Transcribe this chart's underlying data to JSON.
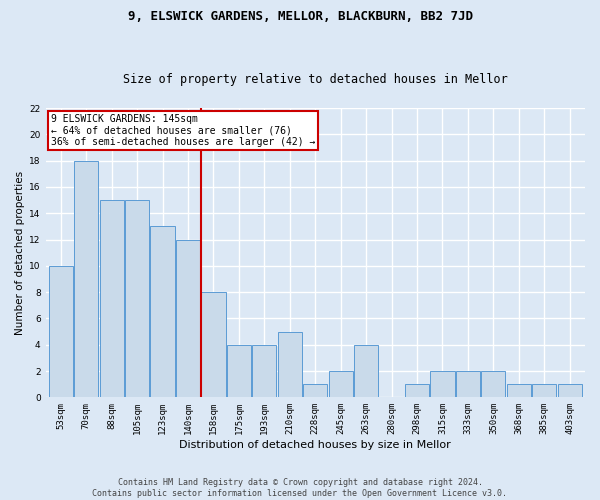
{
  "title_line1": "9, ELSWICK GARDENS, MELLOR, BLACKBURN, BB2 7JD",
  "title_line2": "Size of property relative to detached houses in Mellor",
  "xlabel": "Distribution of detached houses by size in Mellor",
  "ylabel": "Number of detached properties",
  "categories": [
    "53sqm",
    "70sqm",
    "88sqm",
    "105sqm",
    "123sqm",
    "140sqm",
    "158sqm",
    "175sqm",
    "193sqm",
    "210sqm",
    "228sqm",
    "245sqm",
    "263sqm",
    "280sqm",
    "298sqm",
    "315sqm",
    "333sqm",
    "350sqm",
    "368sqm",
    "385sqm",
    "403sqm"
  ],
  "values": [
    10,
    18,
    15,
    15,
    13,
    12,
    8,
    4,
    4,
    5,
    1,
    2,
    4,
    0,
    1,
    2,
    2,
    2,
    1,
    1,
    1
  ],
  "bar_color": "#c9daea",
  "bar_edge_color": "#5b9bd5",
  "annotation_line1": "9 ELSWICK GARDENS: 145sqm",
  "annotation_line2": "← 64% of detached houses are smaller (76)",
  "annotation_line3": "36% of semi-detached houses are larger (42) →",
  "vline_color": "#cc0000",
  "vline_position": 5.5,
  "annotation_box_color": "#ffffff",
  "annotation_box_edge": "#cc0000",
  "ylim": [
    0,
    22
  ],
  "yticks": [
    0,
    2,
    4,
    6,
    8,
    10,
    12,
    14,
    16,
    18,
    20,
    22
  ],
  "footer_line1": "Contains HM Land Registry data © Crown copyright and database right 2024.",
  "footer_line2": "Contains public sector information licensed under the Open Government Licence v3.0.",
  "background_color": "#dce8f5",
  "grid_color": "#ffffff",
  "title1_fontsize": 9,
  "title2_fontsize": 8.5,
  "xlabel_fontsize": 8,
  "ylabel_fontsize": 7.5,
  "tick_fontsize": 6.5,
  "annotation_fontsize": 7,
  "footer_fontsize": 6
}
